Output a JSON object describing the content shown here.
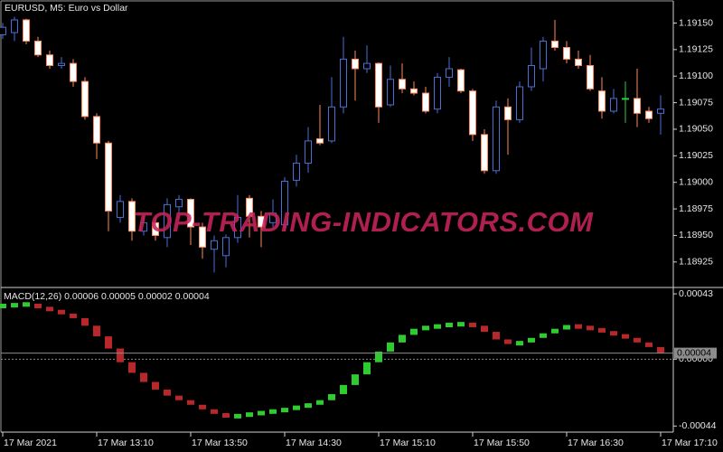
{
  "chart_data": [
    {
      "type": "candlestick",
      "title": "EURUSD, M5:  Euro vs  Dollar",
      "watermark": "TOP-TRADING-INDICATORS.COM",
      "open": [
        1.19139,
        1.19141,
        1.19153,
        1.19133,
        1.1912,
        1.1911,
        1.19112,
        1.19095,
        1.19062,
        1.19037,
        1.18967,
        1.18982,
        1.18954,
        1.18962,
        1.18948,
        1.18977,
        1.18984,
        1.18958,
        1.18937,
        1.18931,
        1.18948,
        1.18985,
        1.18968,
        1.18962,
        1.1896,
        1.19002,
        1.19018,
        1.19041,
        1.19039,
        1.19071,
        1.19116,
        1.19107,
        1.19112,
        1.19073,
        1.19097,
        1.19088,
        1.19084,
        1.19069,
        1.19099,
        1.19106,
        1.19086,
        1.19045,
        1.19011,
        1.19071,
        1.19059,
        1.1909,
        1.19107,
        1.19133,
        1.19127,
        1.19116,
        1.1911,
        1.19086,
        1.19067,
        1.19079,
        1.19079,
        1.19067,
        1.19065
      ],
      "high": [
        1.1915,
        1.19156,
        1.19154,
        1.19137,
        1.19124,
        1.19118,
        1.19116,
        1.19099,
        1.19065,
        1.19039,
        1.18988,
        1.18985,
        1.18968,
        1.18967,
        1.18985,
        1.18988,
        1.18985,
        1.18962,
        1.1895,
        1.18951,
        1.18988,
        1.18988,
        1.18973,
        1.18984,
        1.19005,
        1.19026,
        1.19052,
        1.19073,
        1.19099,
        1.19137,
        1.19124,
        1.19129,
        1.19113,
        1.1911,
        1.19112,
        1.19095,
        1.1909,
        1.19103,
        1.19118,
        1.19107,
        1.19088,
        1.1905,
        1.19077,
        1.19079,
        1.19095,
        1.19127,
        1.19137,
        1.19153,
        1.19133,
        1.19124,
        1.1912,
        1.19099,
        1.19088,
        1.19095,
        1.19107,
        1.19071,
        1.19082
      ],
      "low": [
        1.19135,
        1.19133,
        1.1913,
        1.19118,
        1.19107,
        1.19107,
        1.1909,
        1.19059,
        1.19022,
        1.18954,
        1.18962,
        1.18945,
        1.1895,
        1.18945,
        1.18939,
        1.18971,
        1.18941,
        1.18928,
        1.18915,
        1.1892,
        1.18943,
        1.18948,
        1.18939,
        1.18958,
        1.18954,
        1.18996,
        1.19009,
        1.19035,
        1.19037,
        1.19065,
        1.19077,
        1.19103,
        1.19056,
        1.19071,
        1.19084,
        1.19082,
        1.19065,
        1.19065,
        1.1909,
        1.19084,
        1.19039,
        1.19008,
        1.19008,
        1.19026,
        1.19056,
        1.19086,
        1.19095,
        1.19124,
        1.19112,
        1.19107,
        1.19086,
        1.1906,
        1.19065,
        1.19056,
        1.19052,
        1.19056,
        1.19045
      ],
      "close": [
        1.19146,
        1.19153,
        1.19133,
        1.1912,
        1.1911,
        1.19112,
        1.19095,
        1.19062,
        1.19037,
        1.18973,
        1.18982,
        1.18954,
        1.18962,
        1.1895,
        1.18979,
        1.18984,
        1.18958,
        1.18939,
        1.18945,
        1.18948,
        1.18967,
        1.18968,
        1.18958,
        1.18971,
        1.19001,
        1.19018,
        1.19039,
        1.19037,
        1.19071,
        1.19116,
        1.19107,
        1.19112,
        1.19071,
        1.19097,
        1.19088,
        1.19084,
        1.19067,
        1.19099,
        1.19107,
        1.19086,
        1.19045,
        1.19011,
        1.19071,
        1.19059,
        1.1909,
        1.1911,
        1.19133,
        1.19127,
        1.19116,
        1.1911,
        1.19088,
        1.19067,
        1.19079,
        1.19079,
        1.19065,
        1.1906,
        1.19069
      ],
      "up_color": "#4a6fd6",
      "down_color": "#ff8a5c",
      "down_fill": "#ffffff",
      "doji_color": "#2ecc40",
      "ylim": [
        1.18901,
        1.1917
      ],
      "yticks": [
        {
          "value": 1.1915,
          "label": "1.19150"
        },
        1.19125,
        {
          "value": 1.191,
          "label": "1.19100"
        },
        1.19075,
        {
          "value": 1.1905,
          "label": "1.19050"
        },
        1.19025,
        {
          "value": 1.19,
          "label": "1.19000"
        },
        1.18975,
        {
          "value": 1.1895,
          "label": "1.18950"
        },
        1.18925
      ]
    },
    {
      "type": "histogram",
      "title": "MACD(12,26) 0.00006 0.00005 0.00002 0.00004",
      "categories": [
        "17 Mar 2021",
        null,
        null,
        null,
        null,
        null,
        null,
        null,
        "17 Mar 13:10",
        null,
        null,
        null,
        null,
        null,
        null,
        null,
        "17 Mar 13:50",
        null,
        null,
        null,
        null,
        null,
        null,
        null,
        "17 Mar 14:30",
        null,
        null,
        null,
        null,
        null,
        null,
        null,
        "17 Mar 15:10",
        null,
        null,
        null,
        null,
        null,
        null,
        null,
        "17 Mar 15:50",
        null,
        null,
        null,
        null,
        null,
        null,
        null,
        "17 Mar 16:30",
        null,
        null,
        null,
        null,
        null,
        null,
        null,
        "17 Mar 17:10"
      ],
      "values": [
        0.00035,
        0.00036,
        0.00036,
        0.00034,
        0.00032,
        0.0003,
        0.00027,
        0.00022,
        0.00015,
        7e-05,
        -2e-05,
        -9e-05,
        -0.00015,
        -0.0002,
        -0.00024,
        -0.00027,
        -0.0003,
        -0.00033,
        -0.00036,
        -0.00038,
        -0.00037,
        -0.00036,
        -0.00035,
        -0.00034,
        -0.00033,
        -0.00031,
        -0.0003,
        -0.00027,
        -0.00023,
        -0.00017,
        -0.0001,
        -2e-05,
        5e-05,
        0.00011,
        0.00016,
        0.0002,
        0.00021,
        0.00022,
        0.00023,
        0.00023,
        0.00022,
        0.00018,
        0.00013,
        0.0001,
        0.00011,
        0.00014,
        0.00017,
        0.0002,
        0.00022,
        0.00021,
        0.0002,
        0.00018,
        0.00016,
        0.00014,
        0.00011,
        8e-05,
        4e-05
      ],
      "up_color": "#2fcc2f",
      "down_color": "#b8282a",
      "ylim": [
        -0.00048,
        0.00046
      ],
      "yticks": [
        0.00043,
        {
          "value": 0,
          "label": "0.00000"
        },
        -0.00044
      ],
      "zero_line": true
    }
  ]
}
